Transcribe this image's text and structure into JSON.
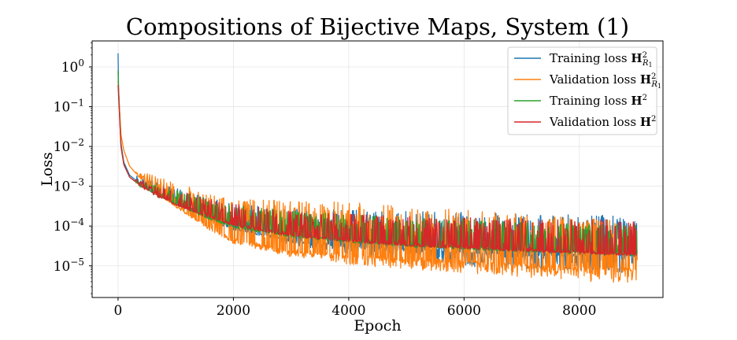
{
  "chart_data": {
    "type": "line",
    "title": "Compositions of Bijective Maps, System (1)",
    "xlabel": "Epoch",
    "ylabel": "Loss",
    "yscale": "log",
    "xlim": [
      -450,
      9450
    ],
    "ylim": [
      1.6e-06,
      4.5
    ],
    "grid": true,
    "legend_position": "top-right",
    "x_ticks": [
      0,
      2000,
      4000,
      6000,
      8000
    ],
    "x_tick_labels": [
      "0",
      "2000",
      "4000",
      "6000",
      "8000"
    ],
    "y_ticks": [
      1e-05,
      0.0001,
      0.001,
      0.01,
      0.1,
      1
    ],
    "y_tick_labels": [
      {
        "base": "10",
        "exp": "−5"
      },
      {
        "base": "10",
        "exp": "−4"
      },
      {
        "base": "10",
        "exp": "−3"
      },
      {
        "base": "10",
        "exp": "−2"
      },
      {
        "base": "10",
        "exp": "−1"
      },
      {
        "base": "10",
        "exp": "0"
      }
    ],
    "series": [
      {
        "name": "Training loss H²_{R1}",
        "legend_text": "Training loss ",
        "legend_math": "H",
        "legend_sup": "2",
        "legend_sub": "R",
        "legend_subsub": "1",
        "color": "#1f77b4",
        "start": 2.2,
        "x": [
          0,
          50,
          100,
          200,
          400,
          700,
          1000,
          1500,
          2000,
          3000,
          4000,
          5000,
          6000,
          7000,
          8000,
          9000
        ],
        "base": [
          0.6,
          0.012,
          0.004,
          0.0019,
          0.0011,
          0.0006,
          0.00038,
          0.00018,
          9e-05,
          4.5e-05,
          3.2e-05,
          2.6e-05,
          2.2e-05,
          2e-05,
          1.9e-05,
          1.8e-05
        ],
        "spike_high": [
          1,
          1,
          1,
          1.1,
          1.5,
          2.0,
          2.5,
          3.0,
          4.0,
          6.0,
          8.0,
          9.0,
          10.0,
          10.0,
          10.0,
          10.0
        ],
        "dip_low": [
          1,
          1,
          1,
          1,
          1,
          1,
          0.95,
          0.9,
          0.85,
          0.75,
          0.65,
          0.55,
          0.45,
          0.4,
          0.35,
          0.35
        ]
      },
      {
        "name": "Validation loss H²_{R1}",
        "legend_text": "Validation loss ",
        "legend_math": "H",
        "legend_sup": "2",
        "legend_sub": "R",
        "legend_subsub": "1",
        "color": "#ff7f0e",
        "start": 0.45,
        "x": [
          0,
          50,
          100,
          200,
          400,
          700,
          1000,
          1500,
          2000,
          3000,
          4000,
          5000,
          6000,
          7000,
          8000,
          9000
        ],
        "base": [
          0.4,
          0.02,
          0.008,
          0.0032,
          0.0015,
          0.00065,
          0.00032,
          0.00011,
          4.5e-05,
          2.4e-05,
          1.8e-05,
          1.5e-05,
          1.3e-05,
          1.1e-05,
          9e-06,
          8e-06
        ],
        "spike_high": [
          1,
          1,
          1,
          1.2,
          1.6,
          2.5,
          4.0,
          6.0,
          10.0,
          18.0,
          22.0,
          22.0,
          20.0,
          18.0,
          18.0,
          16.0
        ],
        "dip_low": [
          1,
          1,
          1,
          1,
          1,
          0.95,
          0.9,
          0.85,
          0.8,
          0.7,
          0.6,
          0.55,
          0.5,
          0.48,
          0.45,
          0.45
        ]
      },
      {
        "name": "Training loss H²",
        "legend_text": "Training loss ",
        "legend_math": "H",
        "legend_sup": "2",
        "legend_sub": "",
        "legend_subsub": "",
        "color": "#2ca02c",
        "start": 0.8,
        "x": [
          0,
          50,
          100,
          200,
          400,
          700,
          1000,
          1500,
          2000,
          3000,
          4000,
          5000,
          6000,
          7000,
          8000,
          9000
        ],
        "base": [
          0.5,
          0.01,
          0.0035,
          0.0017,
          0.001,
          0.00058,
          0.00036,
          0.00018,
          0.0001,
          6e-05,
          4.5e-05,
          3.5e-05,
          3e-05,
          2.6e-05,
          2.3e-05,
          2.1e-05
        ],
        "spike_high": [
          1,
          1,
          1,
          1.1,
          1.4,
          1.8,
          2.2,
          2.8,
          3.4,
          4.0,
          4.5,
          4.8,
          5.0,
          5.0,
          5.0,
          5.0
        ],
        "dip_low": [
          1,
          1,
          1,
          1,
          1,
          1,
          0.95,
          0.9,
          0.9,
          0.85,
          0.85,
          0.85,
          0.85,
          0.85,
          0.85,
          0.85
        ]
      },
      {
        "name": "Validation loss H²",
        "legend_text": "Validation loss ",
        "legend_math": "H",
        "legend_sup": "2",
        "legend_sub": "",
        "legend_subsub": "",
        "color": "#d62728",
        "start": 0.35,
        "x": [
          0,
          50,
          100,
          200,
          400,
          700,
          1000,
          1500,
          2000,
          3000,
          4000,
          5000,
          6000,
          7000,
          8000,
          9000
        ],
        "base": [
          0.35,
          0.01,
          0.0035,
          0.0017,
          0.001,
          0.00058,
          0.00036,
          0.00019,
          0.00011,
          6e-05,
          4.5e-05,
          3.5e-05,
          3e-05,
          2.6e-05,
          2.3e-05,
          2e-05
        ],
        "spike_high": [
          1,
          1,
          1,
          1.1,
          1.4,
          1.8,
          2.2,
          2.8,
          3.4,
          4.0,
          4.5,
          5.0,
          5.5,
          6.0,
          6.5,
          7.0
        ],
        "dip_low": [
          1,
          1,
          1,
          1,
          1,
          1,
          0.95,
          0.92,
          0.9,
          0.88,
          0.88,
          0.88,
          0.88,
          0.88,
          0.88,
          0.88
        ]
      }
    ]
  }
}
